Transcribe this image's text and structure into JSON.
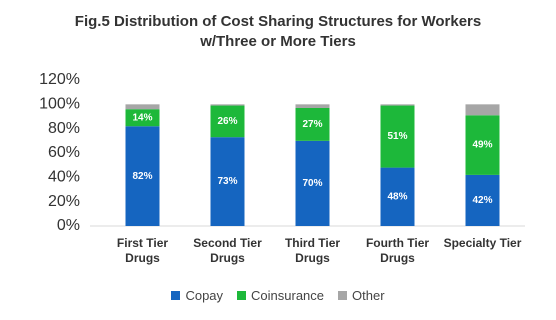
{
  "chart_data": {
    "type": "stacked-bar",
    "title": "Fig.5 Distribution of Cost Sharing Structures for Workers w/Three or More Tiers",
    "categories": [
      "First Tier Drugs",
      "Second Tier Drugs",
      "Third Tier Drugs",
      "Fourth Tier Drugs",
      "Specialty Tier"
    ],
    "series": [
      {
        "name": "Copay",
        "color": "#1565c0",
        "values": [
          82,
          73,
          70,
          48,
          42
        ],
        "value_labels": [
          "82%",
          "73%",
          "70%",
          "48%",
          "42%"
        ]
      },
      {
        "name": "Coinsurance",
        "color": "#1db83a",
        "values": [
          14,
          26,
          27,
          51,
          49
        ],
        "value_labels": [
          "14%",
          "26%",
          "27%",
          "51%",
          "49%"
        ]
      },
      {
        "name": "Other",
        "color": "#a6a6a6",
        "values": [
          4,
          1,
          3,
          1,
          9
        ]
      }
    ],
    "ylim": [
      0,
      120
    ],
    "yticks": [
      {
        "value": 0,
        "label": "0%"
      },
      {
        "value": 20,
        "label": "20%"
      },
      {
        "value": 40,
        "label": "40%"
      },
      {
        "value": 60,
        "label": "60%"
      },
      {
        "value": 80,
        "label": "80%"
      },
      {
        "value": 100,
        "label": "100%"
      },
      {
        "value": 120,
        "label": "120%"
      }
    ],
    "grid": false,
    "legend": "bottom"
  }
}
